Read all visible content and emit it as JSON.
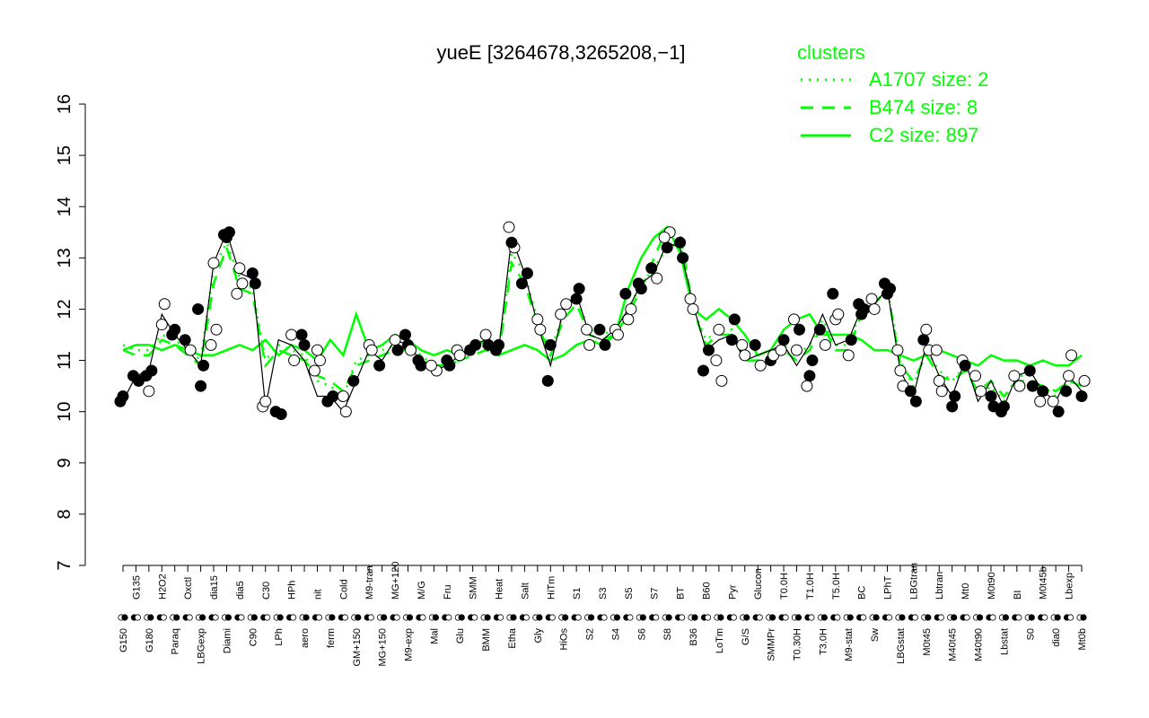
{
  "chart_data": {
    "type": "line",
    "title": "yueE [3264678,3265208,−1]",
    "xlabel": "",
    "ylabel": "",
    "ylim": [
      7,
      16
    ],
    "yticks": [
      7,
      8,
      9,
      10,
      11,
      12,
      13,
      14,
      15,
      16
    ],
    "grid": false,
    "legend": {
      "title": "clusters",
      "placement": "top-right",
      "color": "#00ff00",
      "entries": [
        {
          "label": "A1707 size: 2",
          "style": "dotted"
        },
        {
          "label": "B474 size: 8",
          "style": "dashed"
        },
        {
          "label": "C2 size: 897",
          "style": "solid"
        }
      ]
    },
    "colors": {
      "series_line": "#00ff00",
      "profile_line": "#000000",
      "point_open": "#ffffff",
      "point_filled": "#000000"
    },
    "categories": [
      "G150",
      "G135",
      "G180",
      "H2O2",
      "Paraq",
      "Oxctl",
      "LBGexp",
      "dia15",
      "Diami",
      "dia5",
      "C90",
      "C30",
      "LPh",
      "HPh",
      "aero",
      "nit",
      "ferm",
      "Cold",
      "GM+150",
      "M9-tran",
      "MG+150",
      "MG+120",
      "M9-exp",
      "M/G",
      "Mal",
      "Fru",
      "Glu",
      "SMM",
      "BMM",
      "Heat",
      "Etha",
      "Salt",
      "Gly",
      "HiTm",
      "HiOs",
      "S1",
      "S2",
      "S3",
      "S4",
      "S5",
      "S6",
      "S7",
      "S8",
      "BT",
      "B36",
      "B60",
      "LoTm",
      "Pyr",
      "G/S",
      "Glucon",
      "SMMPr",
      "T0.0H",
      "T0.30H",
      "T1.0H",
      "T3.0H",
      "T5.0H",
      "M9-stat",
      "BC",
      "Sw",
      "LPhT",
      "LBGstat",
      "LBGtran",
      "M0t45",
      "Lbtran",
      "M40t45",
      "Mt0",
      "M40t90",
      "M0t90",
      "Lbstat",
      "BI",
      "S0",
      "M0t45b",
      "dia0",
      "Lbexp",
      "Mt0b"
    ],
    "series": [
      {
        "name": "A1707 size: 2",
        "style": "dotted",
        "values": [
          11.3,
          11.2,
          11.2,
          11.5,
          11.4,
          11.2,
          11.0,
          12.8,
          13.3,
          12.6,
          12.4,
          11.0,
          11.3,
          11.2,
          11.1,
          10.6,
          10.5,
          10.3,
          11.0,
          11.1,
          11.2,
          11.3,
          11.3,
          11.1,
          10.9,
          10.9,
          11.0,
          11.2,
          11.3,
          11.2,
          13.1,
          12.7,
          11.8,
          11.2,
          11.9,
          12.2,
          11.6,
          11.5,
          11.6,
          12.0,
          12.5,
          12.8,
          13.2,
          13.3,
          12.0,
          11.4,
          11.6,
          11.6,
          11.1,
          11.1,
          11.2,
          11.3,
          11.1,
          11.3,
          11.8,
          11.3,
          11.3,
          12.0,
          12.1,
          12.4,
          11.0,
          10.5,
          11.2,
          10.8,
          10.6,
          10.9,
          10.3,
          10.5,
          10.2,
          10.7,
          10.7,
          10.5,
          10.3,
          10.6,
          10.5
        ]
      },
      {
        "name": "B474 size: 8",
        "style": "dashed",
        "values": [
          11.2,
          11.1,
          11.1,
          11.4,
          11.3,
          11.1,
          10.9,
          12.5,
          13.2,
          12.4,
          12.3,
          10.9,
          11.2,
          11.1,
          11.0,
          10.7,
          10.6,
          10.4,
          10.9,
          11.0,
          11.1,
          11.2,
          11.2,
          11.0,
          10.9,
          10.9,
          11.0,
          11.1,
          11.2,
          11.1,
          12.9,
          12.5,
          11.7,
          11.1,
          11.8,
          12.1,
          11.5,
          11.4,
          11.5,
          11.9,
          12.4,
          13.0,
          13.6,
          13.5,
          12.0,
          11.3,
          11.5,
          11.5,
          11.0,
          11.0,
          11.1,
          11.2,
          11.0,
          11.2,
          11.7,
          11.2,
          11.2,
          11.9,
          12.1,
          12.4,
          10.9,
          10.6,
          11.1,
          10.7,
          10.6,
          10.8,
          10.4,
          10.6,
          10.3,
          10.6,
          10.6,
          10.5,
          10.4,
          10.6,
          10.5
        ]
      },
      {
        "name": "C2 size: 897",
        "style": "solid",
        "values": [
          11.2,
          11.3,
          11.3,
          11.2,
          11.3,
          11.2,
          11.1,
          11.1,
          11.2,
          11.3,
          11.2,
          11.4,
          11.1,
          11.3,
          11.2,
          11.0,
          11.4,
          11.1,
          11.9,
          11.2,
          11.3,
          11.5,
          11.4,
          11.2,
          11.1,
          11.2,
          11.1,
          11.2,
          11.4,
          11.1,
          11.2,
          11.3,
          11.2,
          11.0,
          11.1,
          11.3,
          11.4,
          11.3,
          11.5,
          12.4,
          13.0,
          13.4,
          13.6,
          13.1,
          12.0,
          11.8,
          12.0,
          11.8,
          11.5,
          11.1,
          11.2,
          11.6,
          11.8,
          11.9,
          11.5,
          11.5,
          11.5,
          11.4,
          11.2,
          11.2,
          11.1,
          11.0,
          11.1,
          11.2,
          11.1,
          11.0,
          10.9,
          11.1,
          11.0,
          11.0,
          10.9,
          11.0,
          10.9,
          10.9,
          11.1
        ]
      }
    ],
    "profile": {
      "name": "",
      "values": [
        10.2,
        10.7,
        10.8,
        11.9,
        11.5,
        11.2,
        10.9,
        12.9,
        13.5,
        12.7,
        12.6,
        10.1,
        11.4,
        11.3,
        11.0,
        10.3,
        10.3,
        10.0,
        10.6,
        11.2,
        11.0,
        11.4,
        11.3,
        11.0,
        10.8,
        10.9,
        11.1,
        11.3,
        11.4,
        11.2,
        13.4,
        12.7,
        11.7,
        10.9,
        12.0,
        12.3,
        11.5,
        11.4,
        11.6,
        12.0,
        12.5,
        12.7,
        13.3,
        13.2,
        12.1,
        11.2,
        11.4,
        11.5,
        11.0,
        11.1,
        11.2,
        11.3,
        10.9,
        11.3,
        11.9,
        11.3,
        11.4,
        12.0,
        12.1,
        12.4,
        10.8,
        10.3,
        11.3,
        10.7,
        10.3,
        11.0,
        10.2,
        10.6,
        10.1,
        10.7,
        10.8,
        10.4,
        10.2,
        10.7,
        10.4
      ]
    },
    "points": [
      [
        0,
        10.2,
        1
      ],
      [
        0,
        10.3,
        1
      ],
      [
        1,
        10.6,
        1
      ],
      [
        1,
        10.7,
        1
      ],
      [
        2,
        10.4,
        0
      ],
      [
        2,
        10.8,
        1
      ],
      [
        2,
        10.7,
        1
      ],
      [
        3,
        11.7,
        0
      ],
      [
        3,
        12.1,
        0
      ],
      [
        4,
        11.5,
        1
      ],
      [
        4,
        11.6,
        1
      ],
      [
        5,
        11.2,
        0
      ],
      [
        5,
        11.4,
        1
      ],
      [
        6,
        10.5,
        1
      ],
      [
        6,
        10.9,
        1
      ],
      [
        6,
        12.0,
        1
      ],
      [
        7,
        12.9,
        0
      ],
      [
        7,
        11.6,
        0
      ],
      [
        7,
        11.3,
        0
      ],
      [
        8,
        13.4,
        1
      ],
      [
        8,
        13.5,
        1
      ],
      [
        8,
        13.45,
        1
      ],
      [
        9,
        12.8,
        0
      ],
      [
        9,
        12.5,
        0
      ],
      [
        9,
        12.3,
        0
      ],
      [
        10,
        12.7,
        1
      ],
      [
        10,
        12.5,
        1
      ],
      [
        11,
        10.1,
        0
      ],
      [
        11,
        10.2,
        0
      ],
      [
        12,
        9.95,
        1
      ],
      [
        12,
        10.0,
        1
      ],
      [
        13,
        11.5,
        0
      ],
      [
        13,
        11.0,
        0
      ],
      [
        14,
        11.5,
        1
      ],
      [
        14,
        11.3,
        1
      ],
      [
        15,
        11.0,
        0
      ],
      [
        15,
        10.8,
        0
      ],
      [
        15,
        11.2,
        0
      ],
      [
        16,
        10.3,
        1
      ],
      [
        16,
        10.2,
        1
      ],
      [
        17,
        10.3,
        0
      ],
      [
        17,
        10.0,
        0
      ],
      [
        18,
        10.6,
        1
      ],
      [
        19,
        11.3,
        0
      ],
      [
        19,
        11.2,
        0
      ],
      [
        20,
        10.9,
        1
      ],
      [
        21,
        11.4,
        0
      ],
      [
        21,
        11.2,
        1
      ],
      [
        22,
        11.5,
        1
      ],
      [
        22,
        11.3,
        1
      ],
      [
        22,
        11.2,
        0
      ],
      [
        23,
        11.0,
        1
      ],
      [
        23,
        10.9,
        1
      ],
      [
        24,
        10.8,
        0
      ],
      [
        24,
        10.9,
        0
      ],
      [
        25,
        11.0,
        1
      ],
      [
        25,
        10.9,
        1
      ],
      [
        26,
        11.2,
        0
      ],
      [
        26,
        11.1,
        0
      ],
      [
        27,
        11.3,
        1
      ],
      [
        27,
        11.2,
        1
      ],
      [
        28,
        11.5,
        0
      ],
      [
        28,
        11.3,
        1
      ],
      [
        29,
        11.2,
        1
      ],
      [
        29,
        11.3,
        1
      ],
      [
        30,
        13.2,
        0
      ],
      [
        30,
        13.6,
        0
      ],
      [
        30,
        13.3,
        1
      ],
      [
        31,
        12.7,
        1
      ],
      [
        31,
        12.5,
        1
      ],
      [
        32,
        11.8,
        0
      ],
      [
        32,
        11.6,
        0
      ],
      [
        33,
        10.6,
        1
      ],
      [
        33,
        11.3,
        1
      ],
      [
        34,
        12.1,
        0
      ],
      [
        34,
        11.9,
        0
      ],
      [
        35,
        12.2,
        1
      ],
      [
        35,
        12.4,
        1
      ],
      [
        36,
        11.6,
        0
      ],
      [
        36,
        11.3,
        0
      ],
      [
        37,
        11.3,
        1
      ],
      [
        37,
        11.6,
        1
      ],
      [
        38,
        11.6,
        0
      ],
      [
        38,
        11.5,
        0
      ],
      [
        39,
        12.3,
        1
      ],
      [
        39,
        11.8,
        0
      ],
      [
        39,
        12.0,
        0
      ],
      [
        40,
        12.5,
        1
      ],
      [
        40,
        12.4,
        1
      ],
      [
        41,
        12.6,
        0
      ],
      [
        41,
        12.8,
        1
      ],
      [
        42,
        13.2,
        1
      ],
      [
        42,
        13.5,
        0
      ],
      [
        42,
        13.4,
        0
      ],
      [
        43,
        13.3,
        1
      ],
      [
        43,
        13.0,
        1
      ],
      [
        44,
        12.2,
        0
      ],
      [
        44,
        12.0,
        0
      ],
      [
        45,
        11.2,
        1
      ],
      [
        45,
        10.8,
        1
      ],
      [
        46,
        11.6,
        0
      ],
      [
        46,
        10.6,
        0
      ],
      [
        46,
        11.0,
        0
      ],
      [
        47,
        11.4,
        1
      ],
      [
        47,
        11.8,
        1
      ],
      [
        48,
        11.3,
        0
      ],
      [
        48,
        11.1,
        0
      ],
      [
        49,
        10.9,
        0
      ],
      [
        49,
        11.3,
        1
      ],
      [
        50,
        11.0,
        1
      ],
      [
        50,
        11.1,
        0
      ],
      [
        51,
        11.2,
        0
      ],
      [
        51,
        11.4,
        1
      ],
      [
        52,
        11.6,
        1
      ],
      [
        52,
        11.8,
        0
      ],
      [
        52,
        11.2,
        0
      ],
      [
        53,
        11.0,
        1
      ],
      [
        53,
        10.5,
        0
      ],
      [
        53,
        10.7,
        1
      ],
      [
        54,
        11.3,
        0
      ],
      [
        54,
        11.6,
        1
      ],
      [
        55,
        11.8,
        0
      ],
      [
        55,
        11.9,
        0
      ],
      [
        55,
        12.3,
        1
      ],
      [
        56,
        11.1,
        0
      ],
      [
        56,
        11.4,
        1
      ],
      [
        57,
        12.1,
        1
      ],
      [
        57,
        11.9,
        1
      ],
      [
        57,
        12.0,
        1
      ],
      [
        58,
        12.2,
        0
      ],
      [
        58,
        12.0,
        0
      ],
      [
        59,
        12.4,
        1
      ],
      [
        59,
        12.5,
        1
      ],
      [
        59,
        12.3,
        1
      ],
      [
        60,
        10.5,
        0
      ],
      [
        60,
        11.2,
        0
      ],
      [
        60,
        10.8,
        0
      ],
      [
        61,
        10.2,
        1
      ],
      [
        61,
        10.4,
        1
      ],
      [
        62,
        11.6,
        0
      ],
      [
        62,
        11.2,
        0
      ],
      [
        62,
        11.4,
        1
      ],
      [
        63,
        10.6,
        0
      ],
      [
        63,
        10.4,
        0
      ],
      [
        63,
        11.2,
        0
      ],
      [
        64,
        10.1,
        1
      ],
      [
        64,
        10.3,
        1
      ],
      [
        65,
        11.0,
        0
      ],
      [
        65,
        10.9,
        1
      ],
      [
        66,
        10.4,
        0
      ],
      [
        66,
        10.7,
        0
      ],
      [
        67,
        10.3,
        1
      ],
      [
        67,
        10.1,
        1
      ],
      [
        68,
        10.0,
        1
      ],
      [
        68,
        10.1,
        1
      ],
      [
        69,
        10.5,
        0
      ],
      [
        69,
        10.7,
        0
      ],
      [
        70,
        10.8,
        1
      ],
      [
        70,
        10.5,
        1
      ],
      [
        71,
        10.2,
        0
      ],
      [
        71,
        10.4,
        1
      ],
      [
        72,
        10.0,
        1
      ],
      [
        72,
        10.2,
        0
      ],
      [
        73,
        10.7,
        0
      ],
      [
        73,
        11.1,
        0
      ],
      [
        73,
        10.4,
        1
      ],
      [
        74,
        10.3,
        1
      ],
      [
        74,
        10.6,
        0
      ]
    ]
  }
}
